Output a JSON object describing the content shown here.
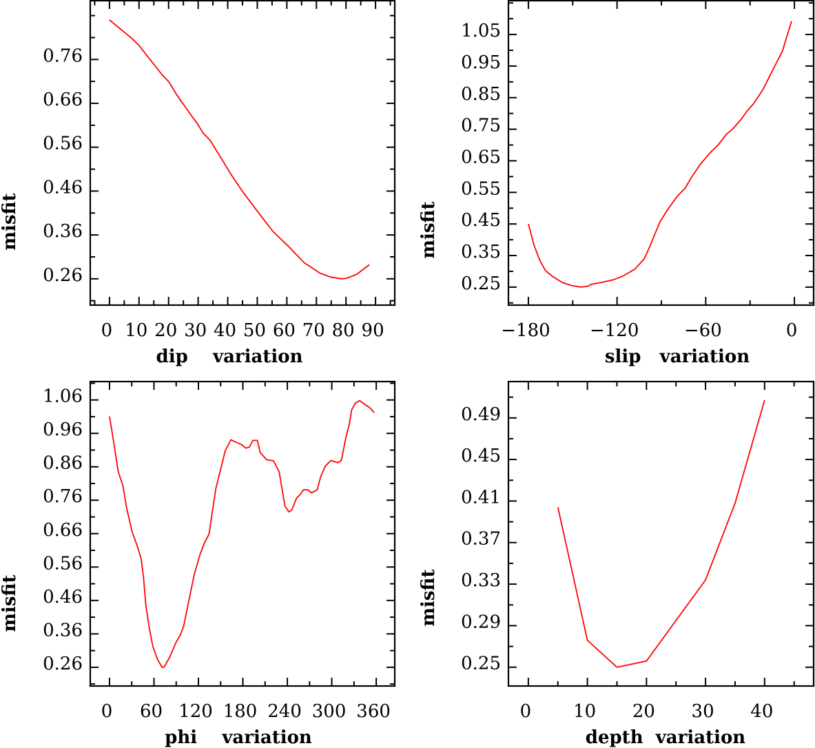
{
  "line_color": "#ff0000",
  "chart_data": [
    {
      "id": "dip",
      "type": "line",
      "xlabel": "dip    variation",
      "ylabel": "misfit",
      "xlim": [
        -6.5,
        96.5
      ],
      "ylim": [
        0.2,
        0.894
      ],
      "xticks": [
        0,
        10,
        20,
        30,
        40,
        50,
        60,
        70,
        80,
        90
      ],
      "xtick_labels": [
        "0",
        "10",
        "20",
        "30",
        "40",
        "50",
        "60",
        "70",
        "80",
        "90"
      ],
      "x_minor_step": 5,
      "yticks": [
        0.26,
        0.36,
        0.46,
        0.56,
        0.66,
        0.76
      ],
      "ytick_labels": [
        "0.26",
        "0.36",
        "0.46",
        "0.56",
        "0.66",
        "0.76"
      ],
      "y_minor_step": 0.05,
      "x": [
        0,
        2.9,
        7.6,
        10,
        14.2,
        17.7,
        20,
        22.7,
        27.4,
        29.7,
        31.7,
        34,
        37.5,
        41.4,
        45.2,
        46.8,
        50.6,
        55.3,
        60.7,
        65.8,
        71.2,
        74.7,
        78.6,
        80.1,
        83.6,
        87.9
      ],
      "y": [
        0.85,
        0.834,
        0.808,
        0.792,
        0.756,
        0.726,
        0.71,
        0.68,
        0.635,
        0.614,
        0.592,
        0.576,
        0.538,
        0.495,
        0.457,
        0.443,
        0.409,
        0.368,
        0.333,
        0.297,
        0.273,
        0.264,
        0.26,
        0.261,
        0.27,
        0.292
      ]
    },
    {
      "id": "slip",
      "type": "line",
      "xlabel": "slip   variation",
      "ylabel": "misfit",
      "xlim": [
        -193.5,
        13
      ],
      "ylim": [
        0.193,
        1.157
      ],
      "xticks": [
        -180,
        -120,
        -60,
        0
      ],
      "xtick_labels": [
        "−180",
        "−120",
        "−60",
        "0"
      ],
      "x_minor_step": 30,
      "yticks": [
        0.25,
        0.35,
        0.45,
        0.55,
        0.65,
        0.75,
        0.85,
        0.95,
        1.05
      ],
      "ytick_labels": [
        "0.25",
        "0.35",
        "0.45",
        "0.55",
        "0.65",
        "0.75",
        "0.85",
        "0.95",
        "1.05"
      ],
      "y_minor_step": 0.05,
      "x": [
        -180,
        -176.1,
        -172.3,
        -168.4,
        -163.7,
        -156.8,
        -150.6,
        -144.4,
        -139.7,
        -137.4,
        -130.4,
        -122.6,
        -115.7,
        -107.9,
        -101.7,
        -97.8,
        -94.7,
        -90.8,
        -85.4,
        -79.2,
        -73.8,
        -69.9,
        -63.7,
        -57.5,
        -51.3,
        -46,
        -42.1,
        -35.9,
        -32.1,
        -27.4,
        -21.2,
        -15.8,
        -11.9,
        -8.1,
        -4.9,
        -1.9
      ],
      "y": [
        0.45,
        0.382,
        0.335,
        0.302,
        0.284,
        0.264,
        0.255,
        0.25,
        0.253,
        0.259,
        0.265,
        0.273,
        0.286,
        0.307,
        0.339,
        0.379,
        0.415,
        0.458,
        0.498,
        0.538,
        0.564,
        0.596,
        0.639,
        0.673,
        0.702,
        0.734,
        0.749,
        0.782,
        0.807,
        0.832,
        0.876,
        0.927,
        0.963,
        0.997,
        1.047,
        1.092
      ]
    },
    {
      "id": "phi",
      "type": "line",
      "xlabel": "phi    variation",
      "ylabel": "misfit",
      "xlim": [
        -26,
        385
      ],
      "ylim": [
        0.204,
        1.115
      ],
      "xticks": [
        0,
        60,
        120,
        180,
        240,
        300,
        360
      ],
      "xtick_labels": [
        "0",
        "60",
        "120",
        "180",
        "240",
        "300",
        "360"
      ],
      "x_minor_step": 30,
      "yticks": [
        0.26,
        0.36,
        0.46,
        0.56,
        0.66,
        0.76,
        0.86,
        0.96,
        1.06
      ],
      "ytick_labels": [
        "0.26",
        "0.36",
        "0.46",
        "0.56",
        "0.66",
        "0.76",
        "0.86",
        "0.96",
        "1.06"
      ],
      "y_minor_step": 0.05,
      "x": [
        0,
        5.6,
        11.8,
        18,
        23.3,
        30.4,
        38.2,
        42.8,
        45.9,
        49,
        53.7,
        58.4,
        64.6,
        70.8,
        73.9,
        81.6,
        89.4,
        95.6,
        100.2,
        106.5,
        114.2,
        122,
        128.2,
        134.4,
        139,
        143.7,
        149.9,
        156.1,
        163.9,
        170.1,
        177.8,
        184,
        188.7,
        193.4,
        199.6,
        203.3,
        212,
        221.3,
        229,
        233.7,
        236.8,
        242.1,
        246.1,
        252.4,
        257,
        261.7,
        267.9,
        272.6,
        280.3,
        285,
        291.2,
        299,
        308.3,
        312.9,
        319.1,
        323.8,
        326.8,
        331.5,
        337.7,
        343.9,
        351.7,
        357.2
      ],
      "y": [
        1.011,
        0.934,
        0.845,
        0.804,
        0.735,
        0.666,
        0.618,
        0.584,
        0.529,
        0.446,
        0.378,
        0.323,
        0.285,
        0.26,
        0.261,
        0.292,
        0.333,
        0.357,
        0.384,
        0.453,
        0.536,
        0.597,
        0.632,
        0.659,
        0.728,
        0.797,
        0.852,
        0.907,
        0.941,
        0.934,
        0.927,
        0.916,
        0.919,
        0.939,
        0.939,
        0.903,
        0.881,
        0.878,
        0.845,
        0.783,
        0.742,
        0.725,
        0.731,
        0.766,
        0.776,
        0.791,
        0.791,
        0.782,
        0.791,
        0.831,
        0.862,
        0.879,
        0.872,
        0.879,
        0.948,
        0.989,
        1.03,
        1.05,
        1.058,
        1.048,
        1.036,
        1.022
      ]
    },
    {
      "id": "depth",
      "type": "line",
      "xlabel": "depth  variation",
      "ylabel": "misfit",
      "xlim": [
        -3.37,
        48.3
      ],
      "ylim": [
        0.2319,
        0.525
      ],
      "xticks": [
        0,
        10,
        20,
        30,
        40
      ],
      "xtick_labels": [
        "0",
        "10",
        "20",
        "30",
        "40"
      ],
      "x_minor_step": 5,
      "yticks": [
        0.25,
        0.29,
        0.33,
        0.37,
        0.41,
        0.45,
        0.49
      ],
      "ytick_labels": [
        "0.25",
        "0.29",
        "0.33",
        "0.37",
        "0.41",
        "0.45",
        "0.49"
      ],
      "y_minor_step": 0.02,
      "x": [
        5,
        10,
        15,
        20,
        30,
        35,
        40
      ],
      "y": [
        0.404,
        0.276,
        0.25,
        0.256,
        0.334,
        0.408,
        0.507
      ]
    }
  ]
}
